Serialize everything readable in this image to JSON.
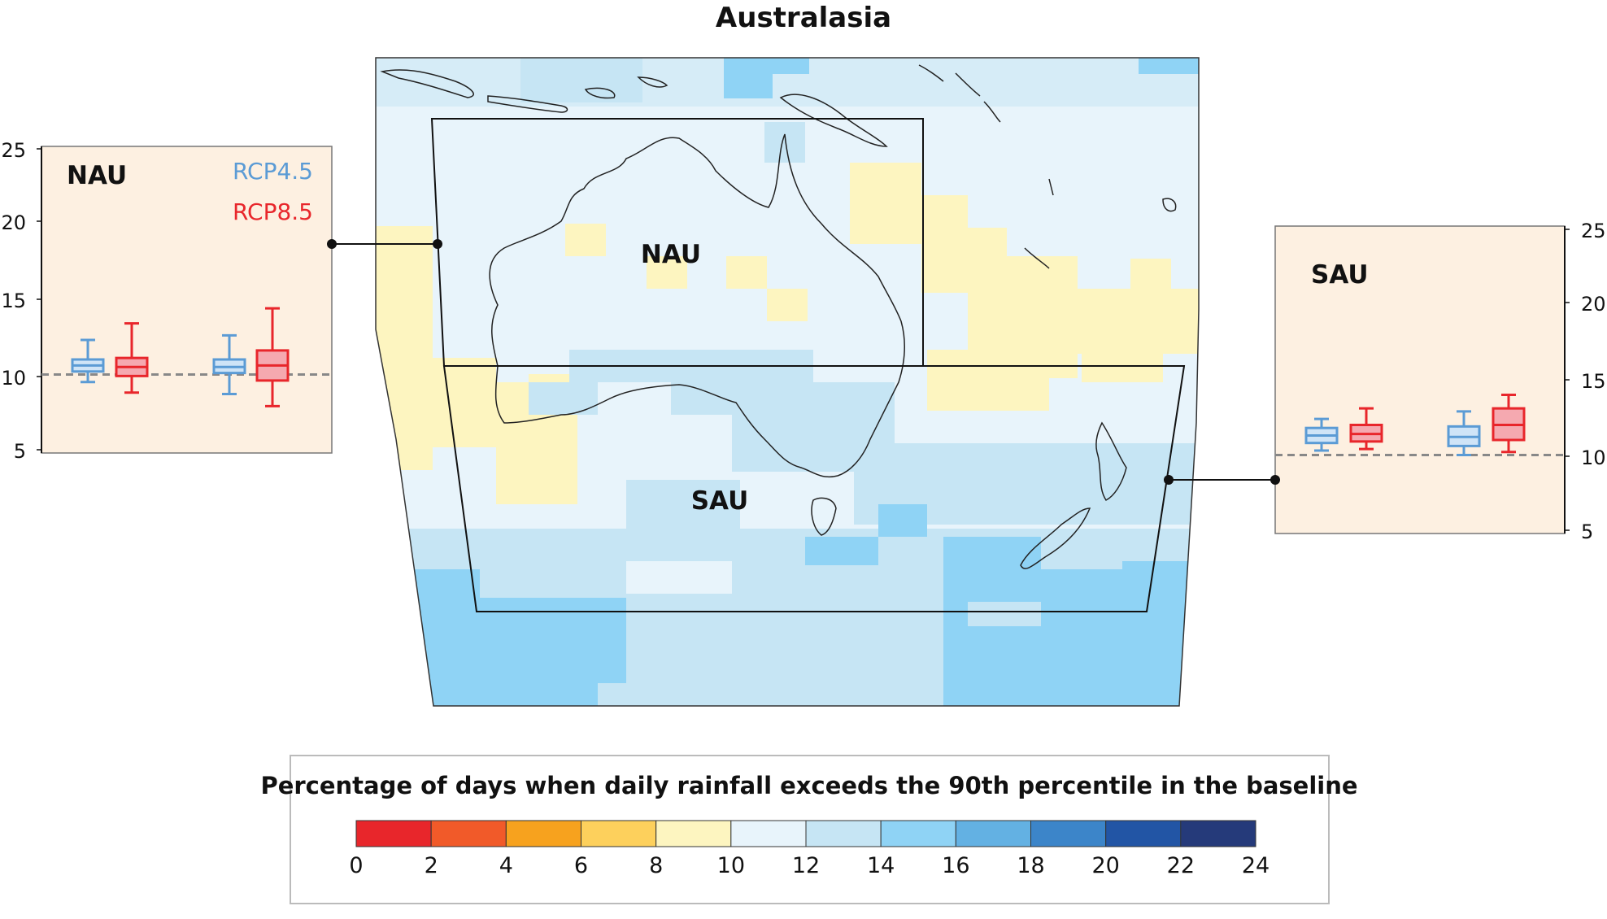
{
  "title": "Australasia",
  "regions": {
    "nau": "NAU",
    "sau": "SAU"
  },
  "inset_nau": {
    "label": "NAU",
    "legend_rcp45": "RCP4.5",
    "legend_rcp85": "RCP8.5",
    "yticks": [
      "25",
      "20",
      "15",
      "10",
      "5"
    ],
    "baseline": 10
  },
  "inset_sau": {
    "label": "SAU",
    "yticks": [
      "25",
      "20",
      "15",
      "10",
      "5"
    ],
    "baseline": 10
  },
  "colorbar": {
    "title": "Percentage of days when daily rainfall exceeds the 90th percentile in the baseline",
    "ticks": [
      "0",
      "2",
      "4",
      "6",
      "8",
      "10",
      "12",
      "14",
      "16",
      "18",
      "20",
      "22",
      "24"
    ],
    "colors": [
      "#e8262b",
      "#f15a29",
      "#f7a21e",
      "#fdd05c",
      "#fdf5c0",
      "#e8f4fb",
      "#c6e5f4",
      "#8fd3f5",
      "#63b1e3",
      "#3c85c9",
      "#2255a5",
      "#253a7a"
    ]
  },
  "colors": {
    "rcp45": "#5b9bd5",
    "rcp85": "#e8262b",
    "inset_bg": "#fdf0e1"
  },
  "chart_data": [
    {
      "type": "box",
      "region": "NAU",
      "ylim": [
        5,
        25
      ],
      "series": [
        {
          "name": "RCP4.5",
          "boxes": [
            {
              "min": 9.5,
              "q1": 10.2,
              "median": 10.6,
              "q3": 11.0,
              "max": 12.3
            },
            {
              "min": 8.7,
              "q1": 10.1,
              "median": 10.5,
              "q3": 11.0,
              "max": 12.6
            }
          ]
        },
        {
          "name": "RCP8.5",
          "boxes": [
            {
              "min": 8.8,
              "q1": 9.9,
              "median": 10.5,
              "q3": 11.1,
              "max": 13.4
            },
            {
              "min": 7.9,
              "q1": 9.6,
              "median": 10.6,
              "q3": 11.6,
              "max": 14.4
            }
          ]
        }
      ],
      "baseline": 10
    },
    {
      "type": "box",
      "region": "SAU",
      "ylim": [
        5,
        25
      ],
      "series": [
        {
          "name": "RCP4.5",
          "boxes": [
            {
              "min": 10.3,
              "q1": 10.8,
              "median": 11.3,
              "q3": 11.8,
              "max": 12.4
            },
            {
              "min": 10.0,
              "q1": 10.6,
              "median": 11.2,
              "q3": 11.9,
              "max": 12.9
            }
          ]
        },
        {
          "name": "RCP8.5",
          "boxes": [
            {
              "min": 10.4,
              "q1": 10.9,
              "median": 11.4,
              "q3": 12.0,
              "max": 13.1
            },
            {
              "min": 10.2,
              "q1": 11.0,
              "median": 12.0,
              "q3": 13.1,
              "max": 14.0
            }
          ]
        }
      ],
      "baseline": 10
    }
  ]
}
